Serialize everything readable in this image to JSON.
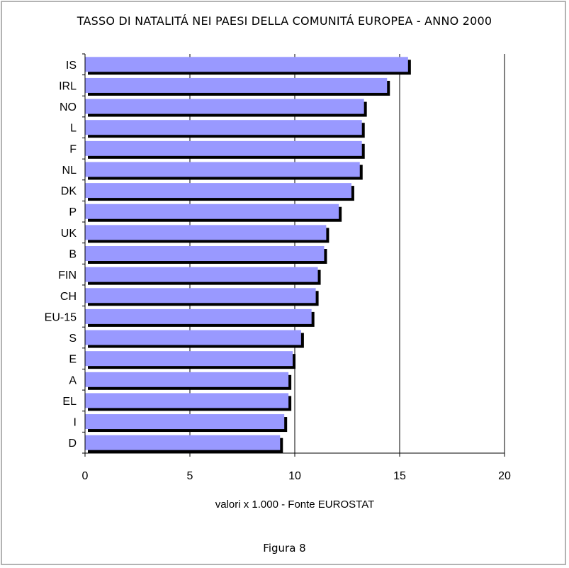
{
  "title": "TASSO DI NATALITÁ NEI PAESI DELLA COMUNITÁ EUROPEA - ANNO 2000",
  "caption": "Figura 8",
  "chart_data": {
    "type": "bar",
    "orientation": "horizontal",
    "title": "TASSO DI NATALITÁ NEI PAESI DELLA COMUNITÁ EUROPEA - ANNO 2000",
    "xlabel": "valori x 1.000 - Fonte EUROSTAT",
    "ylabel": "",
    "categories": [
      "IS",
      "IRL",
      "NO",
      "L",
      "F",
      "NL",
      "DK",
      "P",
      "UK",
      "B",
      "FIN",
      "CH",
      "EU-15",
      "S",
      "E",
      "A",
      "EL",
      "I",
      "D"
    ],
    "values": [
      15.4,
      14.4,
      13.3,
      13.2,
      13.2,
      13.1,
      12.7,
      12.1,
      11.5,
      11.4,
      11.1,
      11.0,
      10.8,
      10.3,
      9.9,
      9.7,
      9.7,
      9.5,
      9.3
    ],
    "xlim": [
      0,
      20
    ],
    "xticks": [
      0,
      5,
      10,
      15,
      20
    ],
    "grid": "vertical",
    "legend": "none",
    "bar_color": "#9999ff",
    "shadow_color": "#000000"
  }
}
